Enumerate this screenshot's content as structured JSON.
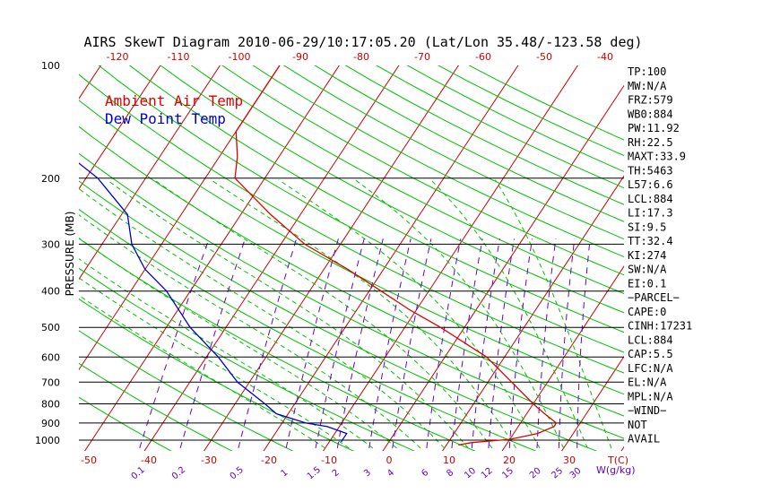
{
  "chart_data": {
    "type": "line",
    "title": "AIRS SkewT Diagram 2010-06-29/10:17:05.20 (Lat/Lon 35.48/-123.58 deg)",
    "ylabel": "PRESSURE (MB)",
    "xlabel_bottom": "T(C)",
    "xlabel_mixing": "W(g/kg)",
    "y_scale": "log",
    "ylim": [
      1050,
      100
    ],
    "xlim_bottom": [
      -55,
      45
    ],
    "xlim_top": [
      -130,
      -35
    ],
    "pressure_ticks": [
      "100",
      "200",
      "300",
      "400",
      "500",
      "600",
      "700",
      "800",
      "900",
      "1000"
    ],
    "pressure_lines": [
      200,
      300,
      400,
      500,
      600,
      700,
      800,
      900,
      1000
    ],
    "top_temp_ticks": [
      "-120",
      "-110",
      "-100",
      "-90",
      "-80",
      "-70",
      "-60",
      "-50",
      "-40"
    ],
    "bottom_temp_ticks": [
      "-50",
      "-40",
      "-30",
      "-20",
      "-10",
      "0",
      "10",
      "20",
      "30"
    ],
    "mixing_ratio_labels": [
      "0.1",
      "0.2",
      "0.5",
      "1",
      "1.5",
      "2",
      "3",
      "4",
      "6",
      "8",
      "10",
      "12",
      "15",
      "20",
      "25",
      "30"
    ],
    "legend": [
      "Ambient Air Temp",
      "Dew Point Temp"
    ],
    "series": [
      {
        "name": "Ambient Air Temp",
        "color": "#dd0000",
        "points": [
          [
            1030,
            12
          ],
          [
            1015,
            14
          ],
          [
            995,
            20
          ],
          [
            960,
            24
          ],
          [
            920,
            26
          ],
          [
            900,
            26
          ],
          [
            850,
            23
          ],
          [
            800,
            20
          ],
          [
            700,
            14
          ],
          [
            600,
            7
          ],
          [
            500,
            -4
          ],
          [
            450,
            -11
          ],
          [
            400,
            -18
          ],
          [
            350,
            -26
          ],
          [
            300,
            -36
          ],
          [
            250,
            -45
          ],
          [
            200,
            -55
          ],
          [
            175,
            -57
          ],
          [
            150,
            -60
          ],
          [
            125,
            -60
          ],
          [
            100,
            -60
          ]
        ]
      },
      {
        "name": "Dew Point Temp",
        "color": "#0000cc",
        "points": [
          [
            1010,
            -8
          ],
          [
            985,
            -8
          ],
          [
            960,
            -8
          ],
          [
            920,
            -12
          ],
          [
            900,
            -16
          ],
          [
            850,
            -22
          ],
          [
            800,
            -25
          ],
          [
            700,
            -32
          ],
          [
            600,
            -38
          ],
          [
            500,
            -46
          ],
          [
            400,
            -54
          ],
          [
            350,
            -60
          ],
          [
            300,
            -65
          ],
          [
            250,
            -69
          ],
          [
            200,
            -78
          ],
          [
            175,
            -85
          ],
          [
            150,
            -92
          ],
          [
            125,
            -96
          ],
          [
            100,
            -102
          ]
        ]
      }
    ],
    "colors": {
      "isotherm": "#cc0000",
      "dry_adiabat": "#00c000",
      "moist_adiabat": "#00c000",
      "mixing_ratio": "#6600cc",
      "isobar": "#000000",
      "axis_text": "#cc0000"
    }
  },
  "indices": [
    "TP:100",
    "MW:N/A",
    "FRZ:579",
    "WB0:884",
    "PW:11.92",
    "RH:22.5",
    "MAXT:33.9",
    "TH:5463",
    "L57:6.6",
    "LCL:884",
    "LI:17.3",
    "SI:9.5",
    "TT:32.4",
    "KI:274",
    "SW:N/A",
    "EI:0.1",
    "−PARCEL−",
    "CAPE:0",
    "CINH:17231",
    "LCL:884",
    "CAP:5.5",
    "LFC:N/A",
    "EL:N/A",
    "MPL:N/A",
    "−WIND−",
    "NOT",
    "AVAIL"
  ]
}
